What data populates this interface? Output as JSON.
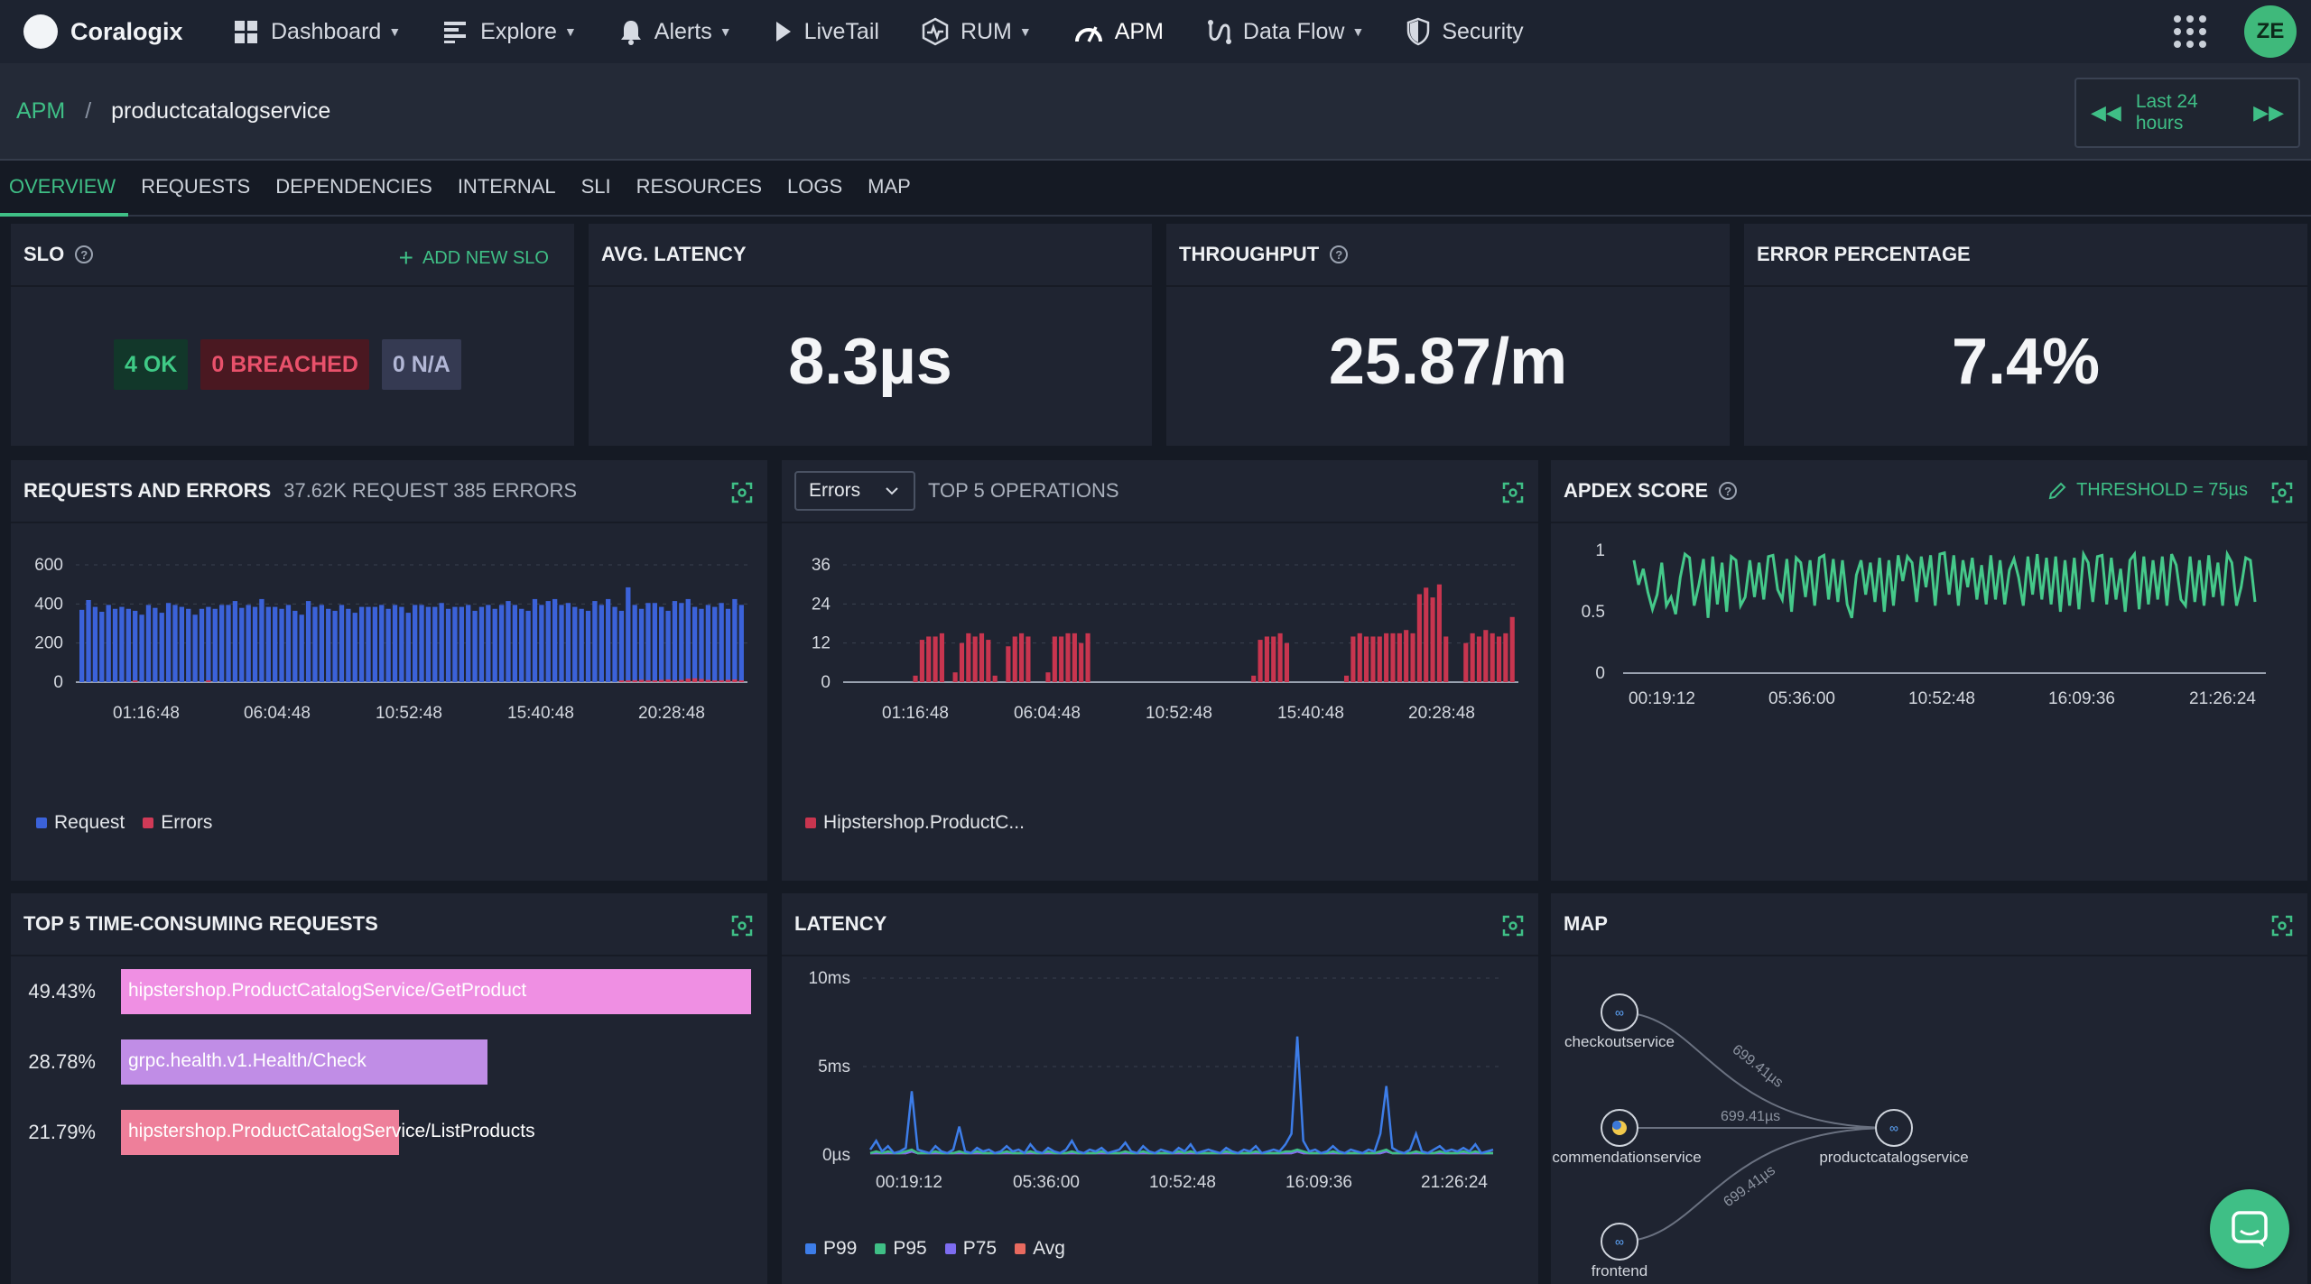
{
  "nav": {
    "logo": "Coralogix",
    "items": [
      {
        "label": "Dashboard",
        "icon": "dashboard-grid-icon",
        "caret": true
      },
      {
        "label": "Explore",
        "icon": "explore-icon",
        "caret": true
      },
      {
        "label": "Alerts",
        "icon": "bell-icon",
        "caret": true
      },
      {
        "label": "LiveTail",
        "icon": "play-icon",
        "caret": false
      },
      {
        "label": "RUM",
        "icon": "rum-icon",
        "caret": true
      },
      {
        "label": "APM",
        "icon": "gauge-icon",
        "caret": false
      },
      {
        "label": "Data Flow",
        "icon": "data-flow-icon",
        "caret": true
      },
      {
        "label": "Security",
        "icon": "shield-icon",
        "caret": false
      }
    ],
    "avatar": "ZE"
  },
  "breadcrumb": {
    "root": "APM",
    "separator": "/",
    "current": "productcatalogservice"
  },
  "time_range": "Last 24 hours",
  "tabs": [
    "OVERVIEW",
    "REQUESTS",
    "DEPENDENCIES",
    "INTERNAL",
    "SLI",
    "RESOURCES",
    "LOGS",
    "MAP"
  ],
  "active_tab": "OVERVIEW",
  "slo": {
    "title": "SLO",
    "add_label": "ADD NEW SLO",
    "ok": "4 OK",
    "breached": "0 BREACHED",
    "na": "0 N/A"
  },
  "avg_latency": {
    "title": "AVG. LATENCY",
    "value": "8.3µs"
  },
  "throughput": {
    "title": "THROUGHPUT",
    "value": "25.87/m"
  },
  "error_percentage": {
    "title": "ERROR PERCENTAGE",
    "value": "7.4%"
  },
  "requests_errors": {
    "title": "REQUESTS AND ERRORS",
    "subtitle": "37.62K REQUEST 385 ERRORS"
  },
  "top_ops": {
    "select_value": "Errors",
    "title": "TOP 5 OPERATIONS"
  },
  "apdex": {
    "title": "APDEX SCORE",
    "threshold": "THRESHOLD = 75µs"
  },
  "top_requests": {
    "title": "TOP 5 TIME-CONSUMING REQUESTS",
    "rows": [
      {
        "pct": "49.43%",
        "label": "hipstershop.ProductCatalogService/GetProduct",
        "value": 49.43,
        "color": "#ef8fe3"
      },
      {
        "pct": "28.78%",
        "label": "grpc.health.v1.Health/Check",
        "value": 28.78,
        "color": "#c08de6"
      },
      {
        "pct": "21.79%",
        "label": "hipstershop.ProductCatalogService/ListProducts",
        "value": 21.79,
        "color": "#ee7f9a"
      }
    ]
  },
  "latency": {
    "title": "LATENCY"
  },
  "map": {
    "title": "MAP",
    "nodes": [
      "checkoutservice",
      "commendationservice",
      "frontend",
      "productcatalogservice"
    ],
    "edge_label": "699.41µs"
  },
  "colors": {
    "accent": "#3fbf86",
    "request": "#3b62d9",
    "error": "#d03a57"
  },
  "chart_data": [
    {
      "type": "bar",
      "title": "REQUESTS AND ERRORS",
      "ylim": [
        0,
        600
      ],
      "yticks": [
        "600",
        "400",
        "200",
        "0"
      ],
      "xticks": [
        "01:16:48",
        "06:04:48",
        "10:52:48",
        "15:40:48",
        "20:28:48"
      ],
      "series": [
        {
          "name": "Request",
          "color": "#3b62d9",
          "values": [
            370,
            420,
            385,
            360,
            395,
            375,
            385,
            375,
            365,
            345,
            395,
            380,
            355,
            405,
            395,
            385,
            375,
            345,
            375,
            385,
            375,
            395,
            395,
            415,
            380,
            395,
            385,
            425,
            385,
            385,
            375,
            395,
            365,
            345,
            415,
            385,
            395,
            375,
            365,
            395,
            375,
            355,
            385,
            385,
            385,
            395,
            375,
            395,
            385,
            355,
            395,
            395,
            385,
            385,
            405,
            375,
            385,
            385,
            395,
            365,
            385,
            395,
            375,
            395,
            415,
            395,
            375,
            365,
            425,
            395,
            415,
            425,
            395,
            405,
            385,
            375,
            365,
            415,
            395,
            425,
            385,
            365,
            485,
            395,
            375,
            405,
            405,
            385,
            365,
            415,
            405,
            425,
            385,
            375,
            395,
            385,
            405,
            375,
            425,
            395
          ]
        },
        {
          "name": "Errors",
          "color": "#d03a57",
          "values": [
            0,
            0,
            0,
            0,
            0,
            0,
            0,
            0,
            8,
            0,
            0,
            0,
            0,
            0,
            0,
            0,
            0,
            0,
            0,
            6,
            0,
            0,
            0,
            0,
            0,
            0,
            0,
            0,
            0,
            0,
            0,
            0,
            0,
            0,
            0,
            0,
            0,
            0,
            0,
            0,
            0,
            0,
            0,
            0,
            0,
            0,
            0,
            0,
            0,
            0,
            0,
            0,
            0,
            0,
            0,
            0,
            0,
            0,
            0,
            0,
            0,
            0,
            0,
            0,
            0,
            0,
            0,
            0,
            0,
            0,
            0,
            0,
            0,
            0,
            0,
            0,
            0,
            0,
            0,
            0,
            0,
            6,
            8,
            10,
            12,
            10,
            8,
            12,
            14,
            10,
            12,
            18,
            20,
            16,
            12,
            8,
            10,
            12,
            14,
            8
          ]
        }
      ],
      "legend": [
        "Request",
        "Errors"
      ]
    },
    {
      "type": "bar",
      "title": "TOP 5 OPERATIONS",
      "ylim": [
        0,
        36
      ],
      "yticks": [
        "36",
        "24",
        "12",
        "0"
      ],
      "xticks": [
        "01:16:48",
        "06:04:48",
        "10:52:48",
        "15:40:48",
        "20:28:48"
      ],
      "series": [
        {
          "name": "Hipstershop.ProductC...",
          "color": "#c8354f",
          "values": [
            0,
            0,
            0,
            0,
            0,
            0,
            0,
            0,
            0,
            0,
            2,
            13,
            14,
            14,
            15,
            0,
            3,
            12,
            15,
            14,
            15,
            13,
            2,
            0,
            11,
            14,
            15,
            14,
            0,
            0,
            3,
            14,
            14,
            15,
            15,
            12,
            15,
            0,
            0,
            0,
            0,
            0,
            0,
            0,
            0,
            0,
            0,
            0,
            0,
            0,
            0,
            0,
            0,
            0,
            0,
            0,
            0,
            0,
            0,
            0,
            0,
            2,
            13,
            14,
            14,
            15,
            12,
            0,
            0,
            0,
            0,
            0,
            0,
            0,
            0,
            2,
            14,
            15,
            14,
            14,
            14,
            15,
            15,
            15,
            16,
            15,
            27,
            29,
            26,
            30,
            14,
            0,
            0,
            12,
            15,
            14,
            16,
            15,
            14,
            15,
            20
          ]
        }
      ],
      "legend": [
        "Hipstershop.ProductC..."
      ]
    },
    {
      "type": "line",
      "title": "APDEX SCORE",
      "ylim": [
        0,
        1
      ],
      "yticks": [
        "1",
        "0.5",
        "0"
      ],
      "xticks": [
        "00:19:12",
        "05:36:00",
        "10:52:48",
        "16:09:36",
        "21:26:24"
      ],
      "series": [
        {
          "name": "Apdex",
          "color": "#45c98a",
          "values": [
            0.92,
            0.72,
            0.85,
            0.66,
            0.52,
            0.64,
            0.9,
            0.55,
            0.62,
            0.48,
            0.78,
            0.97,
            0.94,
            0.55,
            0.72,
            0.93,
            0.45,
            0.95,
            0.56,
            0.9,
            0.5,
            0.95,
            0.92,
            0.55,
            0.62,
            0.92,
            0.62,
            0.9,
            0.6,
            0.95,
            0.96,
            0.68,
            0.6,
            0.93,
            0.5,
            0.94,
            0.9,
            0.62,
            0.92,
            0.55,
            0.94,
            0.96,
            0.6,
            0.93,
            0.58,
            0.92,
            0.56,
            0.45,
            0.8,
            0.92,
            0.64,
            0.9,
            0.58,
            0.94,
            0.5,
            0.92,
            0.55,
            0.96,
            0.75,
            0.95,
            0.9,
            0.58,
            0.95,
            0.7,
            0.96,
            0.55,
            0.97,
            0.98,
            0.64,
            0.96,
            0.55,
            0.92,
            0.7,
            0.94,
            0.6,
            0.88,
            0.56,
            0.96,
            0.6,
            0.92,
            0.56,
            0.84,
            0.93,
            0.78,
            0.55,
            0.95,
            0.64,
            0.97,
            0.6,
            0.94,
            0.56,
            0.95,
            0.5,
            0.92,
            0.55,
            0.94,
            0.52,
            0.97,
            0.9,
            0.58,
            0.95,
            0.96,
            0.56,
            0.94,
            0.6,
            0.85,
            0.5,
            0.92,
            0.97,
            0.52,
            0.95,
            0.56,
            0.92,
            0.6,
            0.95,
            0.55,
            0.97,
            0.88,
            0.6,
            0.55,
            0.95,
            0.58,
            0.92,
            0.55,
            0.96,
            0.62,
            0.9,
            0.55,
            0.97,
            0.9,
            0.55,
            0.7,
            0.94,
            0.92,
            0.58
          ]
        }
      ]
    },
    {
      "type": "line",
      "title": "LATENCY",
      "ylim": [
        0,
        10
      ],
      "yticks": [
        "10ms",
        "5ms",
        "0µs"
      ],
      "xticks": [
        "00:19:12",
        "05:36:00",
        "10:52:48",
        "16:09:36",
        "21:26:24"
      ],
      "series": [
        {
          "name": "P99",
          "color": "#3d7de8",
          "values": [
            0.3,
            0.8,
            0.2,
            0.5,
            0.1,
            0.2,
            0.4,
            3.6,
            0.3,
            0.2,
            0.1,
            0.5,
            0.2,
            0.1,
            0.3,
            1.6,
            0.2,
            0.1,
            0.4,
            0.2,
            0.3,
            0.1,
            0.2,
            0.5,
            0.2,
            0.3,
            0.1,
            0.6,
            0.2,
            0.1,
            0.4,
            0.2,
            0.1,
            0.3,
            0.8,
            0.2,
            0.1,
            0.3,
            0.2,
            0.4,
            0.1,
            0.2,
            0.3,
            0.7,
            0.2,
            0.1,
            0.5,
            0.2,
            0.1,
            0.3,
            0.2,
            0.1,
            0.4,
            0.2,
            0.6,
            0.1,
            0.2,
            0.3,
            0.2,
            0.1,
            0.4,
            0.2,
            0.1,
            0.3,
            0.2,
            0.5,
            0.1,
            0.2,
            0.3,
            0.2,
            0.6,
            1.2,
            6.7,
            0.8,
            0.2,
            0.3,
            0.1,
            0.2,
            0.5,
            0.2,
            0.1,
            0.3,
            0.2,
            0.1,
            0.3,
            0.2,
            1.2,
            3.9,
            0.4,
            0.2,
            0.1,
            0.3,
            1.2,
            0.2,
            0.1,
            0.3,
            0.5,
            0.2,
            0.3,
            0.2,
            0.4,
            0.2,
            0.6,
            0.1,
            0.2,
            0.3
          ]
        },
        {
          "name": "P95",
          "color": "#3fbf86",
          "values": [
            0.1,
            0.2,
            0.1,
            0.2,
            0.1,
            0.1,
            0.2,
            0.3,
            0.1,
            0.1,
            0.1,
            0.2,
            0.1,
            0.1,
            0.1,
            0.2,
            0.1,
            0.1,
            0.2,
            0.1,
            0.1,
            0.1,
            0.1,
            0.2,
            0.1,
            0.1,
            0.1,
            0.2,
            0.1,
            0.1,
            0.2,
            0.1,
            0.1,
            0.1,
            0.2,
            0.1,
            0.1,
            0.1,
            0.1,
            0.2,
            0.1,
            0.1,
            0.1,
            0.2,
            0.1,
            0.1,
            0.2,
            0.1,
            0.1,
            0.1,
            0.1,
            0.1,
            0.2,
            0.1,
            0.2,
            0.1,
            0.1,
            0.1,
            0.1,
            0.1,
            0.2,
            0.1,
            0.1,
            0.1,
            0.1,
            0.2,
            0.1,
            0.1,
            0.1,
            0.1,
            0.2,
            0.2,
            0.3,
            0.2,
            0.1,
            0.1,
            0.1,
            0.1,
            0.2,
            0.1,
            0.1,
            0.1,
            0.1,
            0.1,
            0.1,
            0.1,
            0.2,
            0.3,
            0.1,
            0.1,
            0.1,
            0.1,
            0.2,
            0.1,
            0.1,
            0.1,
            0.2,
            0.1,
            0.1,
            0.1,
            0.2,
            0.1,
            0.2,
            0.1,
            0.1,
            0.1
          ]
        },
        {
          "name": "P75",
          "color": "#7d6cf0",
          "values": [
            0.1,
            0.1,
            0.1,
            0.1,
            0.1,
            0.1,
            0.1,
            0.2,
            0.1,
            0.1,
            0.1,
            0.1,
            0.1,
            0.1,
            0.1,
            0.1,
            0.1,
            0.1,
            0.1,
            0.1,
            0.1,
            0.1,
            0.1,
            0.1,
            0.1,
            0.1,
            0.1,
            0.1,
            0.1,
            0.1,
            0.1,
            0.1,
            0.1,
            0.1,
            0.1,
            0.1,
            0.1,
            0.1,
            0.1,
            0.1,
            0.1,
            0.1,
            0.1,
            0.1,
            0.1,
            0.1,
            0.1,
            0.1,
            0.1,
            0.1,
            0.1,
            0.1,
            0.1,
            0.1,
            0.1,
            0.1,
            0.1,
            0.1,
            0.1,
            0.1,
            0.1,
            0.1,
            0.1,
            0.1,
            0.1,
            0.1,
            0.1,
            0.1,
            0.1,
            0.1,
            0.1,
            0.1,
            0.2,
            0.1,
            0.1,
            0.1,
            0.1,
            0.1,
            0.1,
            0.1,
            0.1,
            0.1,
            0.1,
            0.1,
            0.1,
            0.1,
            0.1,
            0.2,
            0.1,
            0.1,
            0.1,
            0.1,
            0.1,
            0.1,
            0.1,
            0.1,
            0.1,
            0.1,
            0.1,
            0.1,
            0.1,
            0.1,
            0.1,
            0.1,
            0.1,
            0.1
          ]
        },
        {
          "name": "Avg",
          "color": "#e86a5f",
          "values": [
            0.1,
            0.1,
            0.1,
            0.1,
            0.1,
            0.1,
            0.1,
            0.2,
            0.1,
            0.1,
            0.1,
            0.1,
            0.1,
            0.1,
            0.1,
            0.1,
            0.1,
            0.1,
            0.1,
            0.1,
            0.1,
            0.1,
            0.1,
            0.1,
            0.1,
            0.1,
            0.1,
            0.1,
            0.1,
            0.1,
            0.1,
            0.1,
            0.1,
            0.1,
            0.1,
            0.1,
            0.1,
            0.1,
            0.1,
            0.1,
            0.1,
            0.1,
            0.1,
            0.1,
            0.1,
            0.1,
            0.1,
            0.1,
            0.1,
            0.1,
            0.1,
            0.1,
            0.1,
            0.1,
            0.1,
            0.1,
            0.1,
            0.1,
            0.1,
            0.1,
            0.1,
            0.1,
            0.1,
            0.1,
            0.1,
            0.1,
            0.1,
            0.1,
            0.1,
            0.1,
            0.1,
            0.1,
            0.2,
            0.1,
            0.1,
            0.1,
            0.1,
            0.1,
            0.1,
            0.1,
            0.1,
            0.1,
            0.1,
            0.1,
            0.1,
            0.1,
            0.1,
            0.2,
            0.1,
            0.1,
            0.1,
            0.1,
            0.1,
            0.1,
            0.1,
            0.1,
            0.1,
            0.1,
            0.1,
            0.1,
            0.1,
            0.1,
            0.1,
            0.1,
            0.1,
            0.1
          ]
        }
      ],
      "legend": [
        "P99",
        "P95",
        "P75",
        "Avg"
      ]
    }
  ]
}
